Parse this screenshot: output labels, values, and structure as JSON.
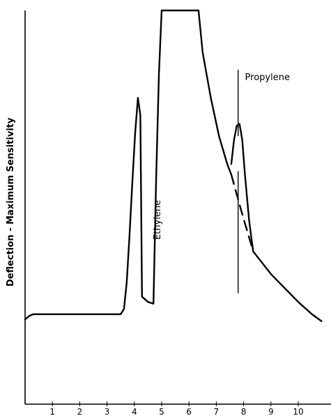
{
  "chart_data": {
    "type": "line",
    "title": "",
    "xlabel": "",
    "ylabel": "Deflection - Maximum Sensitivity",
    "x_ticks": [
      1,
      2,
      3,
      4,
      5,
      6,
      7,
      8,
      9,
      10
    ],
    "xlim": [
      0,
      11.2
    ],
    "ylim": [
      0,
      1
    ],
    "grid": false,
    "series": [
      {
        "x": [
          0,
          0.15,
          0.3,
          3.5,
          3.62,
          3.72,
          3.82,
          3.92,
          4.03,
          4.13,
          4.22,
          4.28,
          4.5,
          4.7,
          4.8,
          4.9,
          5.0,
          5.2,
          5.5,
          5.8,
          6.1,
          6.35,
          6.5,
          6.8,
          7.1,
          7.4,
          7.55
        ],
        "y": [
          0.115,
          0.125,
          0.13,
          0.13,
          0.145,
          0.22,
          0.35,
          0.5,
          0.65,
          0.75,
          0.7,
          0.18,
          0.165,
          0.16,
          0.52,
          0.82,
          1.0,
          1.0,
          1.0,
          1.0,
          1.0,
          1.0,
          0.88,
          0.75,
          0.64,
          0.56,
          0.53
        ]
      },
      {
        "x": [
          7.55,
          7.65,
          7.75,
          7.85,
          7.95,
          8.05,
          8.2,
          8.35,
          8.6,
          9.0,
          9.5,
          10.0,
          10.5,
          10.85
        ],
        "y": [
          0.56,
          0.63,
          0.67,
          0.675,
          0.63,
          0.53,
          0.4,
          0.31,
          0.285,
          0.245,
          0.205,
          0.165,
          0.13,
          0.11
        ]
      },
      {
        "style": "dashed",
        "x": [
          7.55,
          7.9,
          8.35
        ],
        "y": [
          0.53,
          0.43,
          0.31
        ]
      }
    ],
    "annotations": [
      {
        "text": "Ethylene",
        "x": 4.95,
        "y": 0.4,
        "orientation": "vertical"
      },
      {
        "text": "Propylene",
        "x": 8.05,
        "y": 0.8,
        "orientation": "horizontal"
      }
    ],
    "marker_lines": [
      {
        "x": 7.8,
        "y_from": 0.19,
        "y_to": 0.54
      },
      {
        "x": 7.8,
        "y_from": 0.64,
        "y_to": 0.83
      }
    ]
  }
}
